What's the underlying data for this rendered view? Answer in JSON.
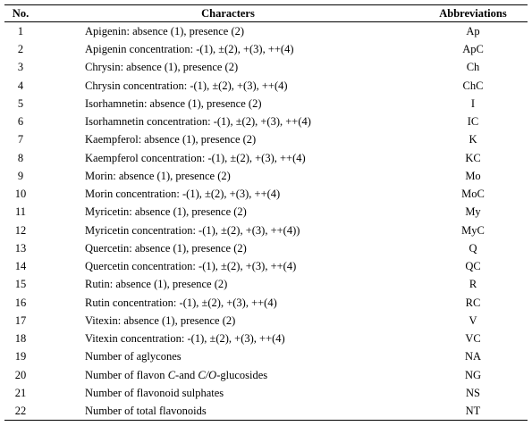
{
  "table": {
    "header": [
      "No.",
      "Characters",
      "Abbreviations"
    ],
    "rows": [
      [
        "1",
        "Apigenin: absence (1), presence (2)",
        "Ap"
      ],
      [
        "2",
        "Apigenin concentration: -(1), ±(2), +(3), ++(4)",
        "ApC"
      ],
      [
        "3",
        "Chrysin: absence (1), presence (2)",
        "Ch"
      ],
      [
        "4",
        "Chrysin concentration: -(1), ±(2), +(3), ++(4)",
        "ChC"
      ],
      [
        "5",
        "Isorhamnetin: absence (1), presence (2)",
        "I"
      ],
      [
        "6",
        "Isorhamnetin concentration: -(1), ±(2), +(3), ++(4)",
        "IC"
      ],
      [
        "7",
        "Kaempferol: absence (1), presence (2)",
        "K"
      ],
      [
        "8",
        "Kaempferol concentration: -(1), ±(2), +(3), ++(4)",
        "KC"
      ],
      [
        "9",
        "Morin: absence (1), presence (2)",
        "Mo"
      ],
      [
        "10",
        "Morin concentration: -(1), ±(2), +(3), ++(4)",
        "MoC"
      ],
      [
        "11",
        "Myricetin: absence (1), presence (2)",
        "My"
      ],
      [
        "12",
        "Myricetin concentration: -(1), ±(2), +(3), ++(4))",
        "MyC"
      ],
      [
        "13",
        "Quercetin: absence (1), presence (2)",
        "Q"
      ],
      [
        "14",
        "Quercetin concentration: -(1), ±(2), +(3), ++(4)",
        "QC"
      ],
      [
        "15",
        "Rutin: absence (1), presence (2)",
        "R"
      ],
      [
        "16",
        "Rutin concentration: -(1), ±(2), +(3), ++(4)",
        "RC"
      ],
      [
        "17",
        "Vitexin: absence (1), presence (2)",
        "V"
      ],
      [
        "18",
        "Vitexin concentration: -(1), ±(2), +(3), ++(4)",
        "VC"
      ],
      [
        "19",
        "Number of aglycones",
        "NA"
      ],
      [
        "20",
        [
          "Number of flavon ",
          "C",
          "-and ",
          "C/O",
          "-glucosides"
        ],
        "NG"
      ],
      [
        "21",
        "Number of flavonoid sulphates",
        "NS"
      ],
      [
        "22",
        "Number of total flavonoids",
        "NT"
      ]
    ]
  }
}
